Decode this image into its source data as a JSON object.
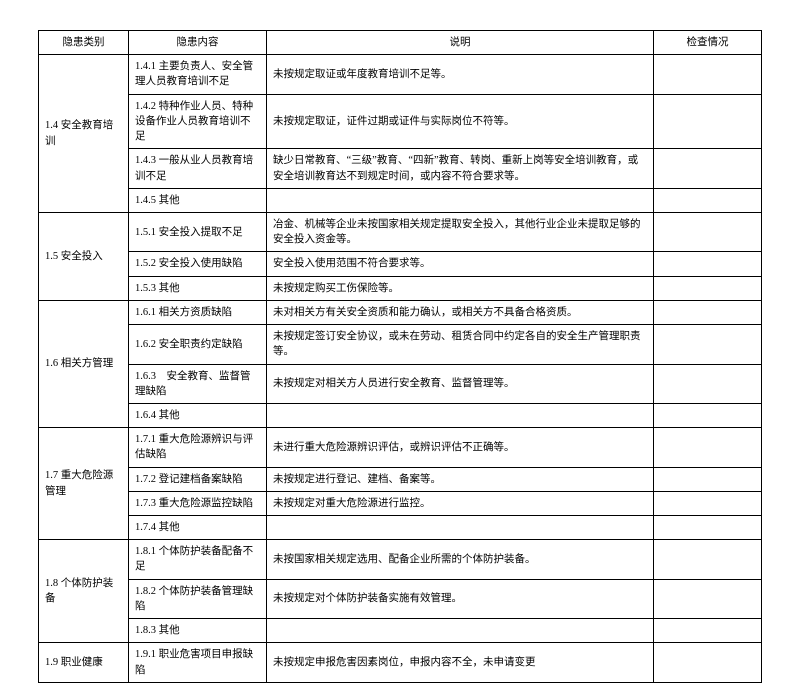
{
  "headers": {
    "category": "隐患类别",
    "content": "隐患内容",
    "desc": "说明",
    "check": "检查情况"
  },
  "rows": [
    {
      "cat": "1.4 安全教育培训",
      "span": 4,
      "content": "1.4.1 主要负责人、安全管理人员教育培训不足",
      "desc": "未按规定取证或年度教育培训不足等。"
    },
    {
      "content": "1.4.2 特种作业人员、特种设备作业人员教育培训不足",
      "desc": "未按规定取证，证件过期或证件与实际岗位不符等。"
    },
    {
      "content": "1.4.3 一般从业人员教育培训不足",
      "desc": "缺少日常教育、“三级”教育、“四新”教育、转岗、重新上岗等安全培训教育，或安全培训教育达不到规定时间，或内容不符合要求等。"
    },
    {
      "content": "1.4.5 其他",
      "desc": ""
    },
    {
      "cat": "1.5 安全投入",
      "span": 3,
      "content": "1.5.1 安全投入提取不足",
      "desc": "冶金、机械等企业未按国家相关规定提取安全投入，其他行业企业未提取足够的安全投入资金等。"
    },
    {
      "content": "1.5.2 安全投入使用缺陷",
      "desc": "安全投入使用范围不符合要求等。"
    },
    {
      "content": "1.5.3 其他",
      "desc": "未按规定购买工伤保险等。"
    },
    {
      "cat": "1.6 相关方管理",
      "span": 4,
      "content": "1.6.1 相关方资质缺陷",
      "desc": "未对相关方有关安全资质和能力确认，或相关方不具备合格资质。"
    },
    {
      "content": "1.6.2 安全职责约定缺陷",
      "desc": "未按规定签订安全协议，或未在劳动、租赁合同中约定各自的安全生产管理职责等。"
    },
    {
      "content": "1.6.3　安全教育、监督管理缺陷",
      "desc": "未按规定对相关方人员进行安全教育、监督管理等。"
    },
    {
      "content": "1.6.4 其他",
      "desc": ""
    },
    {
      "cat": "1.7 重大危险源管理",
      "span": 4,
      "content": "1.7.1 重大危险源辨识与评估缺陷",
      "desc": "未进行重大危险源辨识评估，或辨识评估不正确等。"
    },
    {
      "content": "1.7.2 登记建档备案缺陷",
      "desc": "未按规定进行登记、建档、备案等。"
    },
    {
      "content": "1.7.3 重大危险源监控缺陷",
      "desc": "未按规定对重大危险源进行监控。"
    },
    {
      "content": "1.7.4 其他",
      "desc": ""
    },
    {
      "cat": "1.8 个体防护装备",
      "span": 3,
      "content": "1.8.1 个体防护装备配备不足",
      "desc": "未按国家相关规定选用、配备企业所需的个体防护装备。"
    },
    {
      "content": "1.8.2 个体防护装备管理缺陷",
      "desc": "未按规定对个体防护装备实施有效管理。"
    },
    {
      "content": "1.8.3 其他",
      "desc": ""
    },
    {
      "cat": "1.9 职业健康",
      "span": 1,
      "content": "1.9.1 职业危害项目申报缺陷",
      "desc": "未按规定申报危害因素岗位，申报内容不全，未申请变更"
    }
  ]
}
